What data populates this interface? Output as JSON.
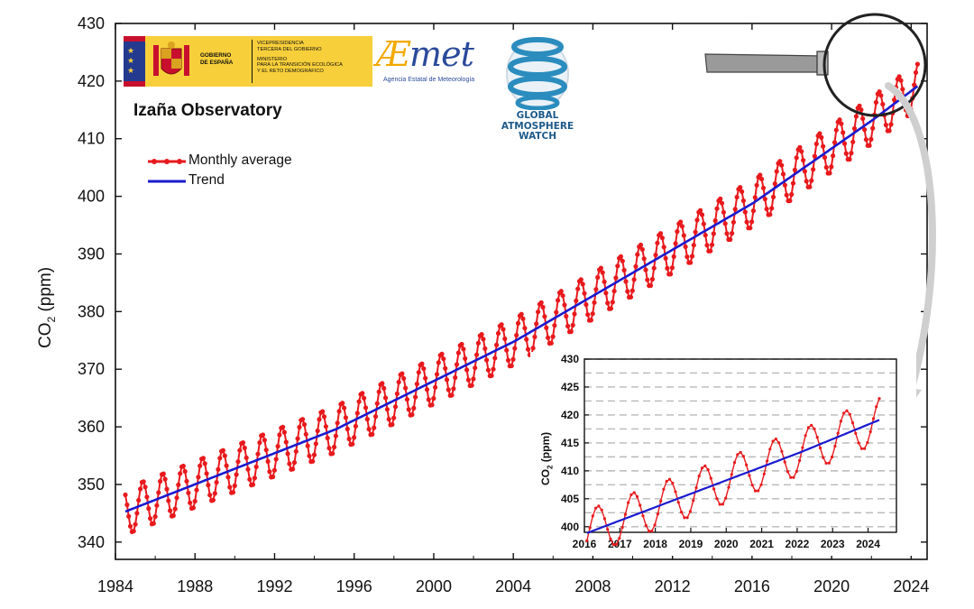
{
  "logos": {
    "gobierno": {
      "left_line1": "GOBIERNO",
      "left_line2": "DE ESPAÑA",
      "right_line1": "VICEPRESIDENCIA",
      "right_line2": "TERCERA DEL GOBIERNO",
      "right_line3": "MINISTERIO",
      "right_line4": "PARA LA TRANSICIÓN ECOLÓGICA",
      "right_line5": "Y EL RETO DEMOGRÁFICO"
    },
    "aemet": {
      "word": "AEmet",
      "subtitle": "Agencia Estatal de Meteorología"
    },
    "gaw": {
      "line1": "GLOBAL",
      "line2": "ATMOSPHERE",
      "line3": "WATCH"
    }
  },
  "colors": {
    "monthly": "#e8191c",
    "trend": "#1a1ad0",
    "axis": "#111111",
    "grid": "#b8b8b8"
  },
  "chart_data": [
    {
      "type": "line",
      "title": "Izaña Observatory",
      "xlabel": "",
      "ylabel": "CO2 (ppm)",
      "xlim": [
        1984,
        2024.8
      ],
      "ylim": [
        337,
        430
      ],
      "xticks": [
        "1984",
        "1988",
        "1992",
        "1996",
        "2000",
        "2004",
        "2008",
        "2012",
        "2016",
        "2020",
        "2024"
      ],
      "yticks": [
        "340",
        "350",
        "360",
        "370",
        "380",
        "390",
        "400",
        "410",
        "420",
        "430"
      ],
      "grid": false,
      "legend": "top-left",
      "series": [
        {
          "name": "Monthly average",
          "model": {
            "start": 1984.5,
            "end": 2024.4,
            "step": 0.0833,
            "base_year": 1984.5,
            "base_value": 345.3,
            "rate": [
              [
                1984.5,
                1.35
              ],
              [
                1995,
                1.7
              ],
              [
                2004,
                2.0
              ],
              [
                2016,
                2.4
              ],
              [
                2022,
                2.6
              ]
            ],
            "seasonal_amplitude": 4.1,
            "seasonal_peak_month": 5
          },
          "color": "#e8191c"
        },
        {
          "name": "Trend",
          "model": "smoothed deseasonalized monthly average, 345.3 ppm (mid-1984) to 424.2 ppm (mid-2024)",
          "color": "#1a1ad0"
        }
      ]
    },
    {
      "type": "line",
      "title": "",
      "xlabel": "",
      "ylabel": "CO2 (ppm)",
      "xlim": [
        2016,
        2024.8
      ],
      "ylim": [
        399,
        430
      ],
      "xticks": [
        "2016",
        "2017",
        "2018",
        "2019",
        "2020",
        "2021",
        "2022",
        "2023",
        "2024"
      ],
      "yticks": [
        "400",
        "405",
        "410",
        "415",
        "420",
        "425",
        "430"
      ],
      "grid": true,
      "series": [
        {
          "name": "Monthly average",
          "color": "#e8191c"
        },
        {
          "name": "Trend",
          "color": "#1a1ad0"
        }
      ]
    }
  ]
}
